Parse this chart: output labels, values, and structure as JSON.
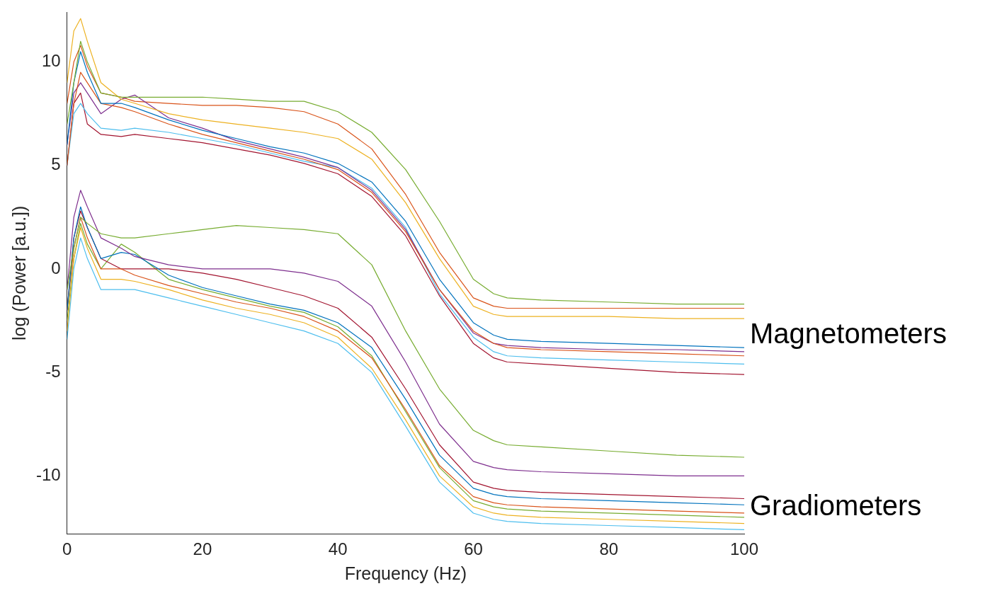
{
  "chart_data": {
    "type": "line",
    "xlabel": "Frequency (Hz)",
    "ylabel": "log (Power [a.u.])",
    "x": [
      0,
      1,
      2,
      3,
      5,
      8,
      10,
      15,
      20,
      25,
      30,
      35,
      40,
      45,
      50,
      55,
      60,
      63,
      65,
      70,
      80,
      90,
      100
    ],
    "xlim": [
      0,
      100
    ],
    "xticks": [
      0,
      20,
      40,
      60,
      80,
      100
    ],
    "ylim": [
      -12.8,
      12.4
    ],
    "yticks": [
      -10,
      -5,
      0,
      5,
      10
    ],
    "grid": false,
    "legend": false,
    "marker": "none",
    "line_style": "solid",
    "series": [
      {
        "color": "#77ac30",
        "values": [
          7,
          9,
          11,
          10,
          8.5,
          8.3,
          8.3,
          8.3,
          8.3,
          8.2,
          8.1,
          8.1,
          7.6,
          6.6,
          4.8,
          2.3,
          -0.5,
          -1.2,
          -1.4,
          -1.5,
          -1.6,
          -1.7,
          -1.7
        ]
      },
      {
        "color": "#edb120",
        "values": [
          9,
          11.5,
          12.1,
          11,
          9,
          8.2,
          8,
          7.5,
          7.2,
          7,
          6.8,
          6.6,
          6.3,
          5.3,
          3.2,
          0.5,
          -1.8,
          -2.2,
          -2.3,
          -2.3,
          -2.3,
          -2.4,
          -2.4
        ]
      },
      {
        "color": "#0072bd",
        "values": [
          6,
          9,
          10.5,
          9.5,
          8,
          8,
          7.8,
          7.2,
          6.7,
          6.3,
          5.9,
          5.6,
          5.1,
          4.2,
          2.3,
          -0.5,
          -2.6,
          -3.2,
          -3.4,
          -3.5,
          -3.6,
          -3.7,
          -3.8
        ]
      },
      {
        "color": "#d95319",
        "values": [
          5,
          8,
          9.5,
          9,
          8,
          7.8,
          7.6,
          7,
          6.5,
          6.1,
          5.7,
          5.3,
          4.8,
          3.7,
          1.8,
          -1,
          -3,
          -3.6,
          -3.8,
          -3.9,
          -4,
          -4.1,
          -4.2
        ]
      },
      {
        "color": "#7e2f8e",
        "values": [
          6,
          8.5,
          9,
          8.5,
          7.5,
          8.2,
          8.4,
          7.3,
          6.8,
          6.2,
          5.8,
          5.4,
          4.9,
          3.8,
          1.9,
          -1,
          -3.1,
          -3.6,
          -3.7,
          -3.8,
          -3.9,
          -3.9,
          -4
        ]
      },
      {
        "color": "#4dbeee",
        "values": [
          5,
          7.5,
          8,
          7.5,
          6.8,
          6.7,
          6.8,
          6.6,
          6.3,
          6,
          5.6,
          5.2,
          4.9,
          3.9,
          2,
          -1.2,
          -3.3,
          -4,
          -4.2,
          -4.3,
          -4.4,
          -4.5,
          -4.6
        ]
      },
      {
        "color": "#a2142f",
        "values": [
          5,
          8,
          8.5,
          7,
          6.5,
          6.4,
          6.5,
          6.3,
          6.1,
          5.8,
          5.5,
          5.1,
          4.6,
          3.5,
          1.6,
          -1.3,
          -3.6,
          -4.3,
          -4.5,
          -4.6,
          -4.8,
          -5,
          -5.1
        ]
      },
      {
        "color": "#d95319",
        "values": [
          8,
          10,
          10.8,
          9.8,
          8.5,
          8.3,
          8.1,
          8,
          7.9,
          7.9,
          7.8,
          7.6,
          7,
          5.8,
          3.6,
          0.8,
          -1.4,
          -1.8,
          -1.9,
          -1.9,
          -1.9,
          -1.9,
          -1.9
        ]
      },
      {
        "color": "#77ac30",
        "values": [
          -1,
          1,
          2.5,
          2.2,
          1.7,
          1.5,
          1.5,
          1.7,
          1.9,
          2.1,
          2,
          1.9,
          1.7,
          0.2,
          -3,
          -5.8,
          -7.8,
          -8.3,
          -8.5,
          -8.6,
          -8.8,
          -9,
          -9.1
        ]
      },
      {
        "color": "#7e2f8e",
        "values": [
          -1,
          2.5,
          3.8,
          3,
          1.5,
          1,
          0.6,
          0.2,
          0,
          0,
          0,
          -0.2,
          -0.6,
          -1.8,
          -4.5,
          -7.5,
          -9.3,
          -9.6,
          -9.7,
          -9.8,
          -9.9,
          -10,
          -10
        ]
      },
      {
        "color": "#0072bd",
        "values": [
          -2,
          1.5,
          3,
          2,
          0.5,
          0.8,
          0.7,
          -0.3,
          -0.9,
          -1.3,
          -1.7,
          -2,
          -2.6,
          -3.8,
          -6.3,
          -9,
          -10.6,
          -10.9,
          -11,
          -11.1,
          -11.2,
          -11.3,
          -11.4
        ]
      },
      {
        "color": "#d95319",
        "values": [
          -2,
          1,
          2.5,
          1.5,
          0,
          0,
          -0.3,
          -0.8,
          -1.2,
          -1.6,
          -1.9,
          -2.3,
          -3,
          -4.3,
          -6.8,
          -9.5,
          -11,
          -11.3,
          -11.4,
          -11.5,
          -11.6,
          -11.7,
          -11.8
        ]
      },
      {
        "color": "#edb120",
        "values": [
          -3,
          0.5,
          2,
          1,
          -0.5,
          -0.5,
          -0.6,
          -1,
          -1.5,
          -1.9,
          -2.2,
          -2.6,
          -3.3,
          -4.8,
          -7.3,
          -10,
          -11.5,
          -11.8,
          -11.9,
          -12,
          -12.1,
          -12.2,
          -12.3
        ]
      },
      {
        "color": "#4dbeee",
        "values": [
          -3.4,
          0,
          1.5,
          0.5,
          -1,
          -1,
          -1,
          -1.4,
          -1.8,
          -2.2,
          -2.6,
          -3,
          -3.6,
          -5,
          -7.6,
          -10.3,
          -11.8,
          -12.1,
          -12.2,
          -12.3,
          -12.4,
          -12.5,
          -12.6
        ]
      },
      {
        "color": "#a2142f",
        "values": [
          -2,
          1.5,
          2.8,
          2,
          0.5,
          0,
          0,
          0,
          -0.2,
          -0.5,
          -0.9,
          -1.3,
          -1.9,
          -3.3,
          -5.8,
          -8.5,
          -10.3,
          -10.6,
          -10.7,
          -10.8,
          -10.9,
          -11,
          -11.1
        ]
      },
      {
        "color": "#77ac30",
        "values": [
          -2.5,
          0.5,
          2.2,
          1.2,
          0,
          1.2,
          0.8,
          -0.5,
          -1,
          -1.4,
          -1.8,
          -2.1,
          -2.8,
          -4.2,
          -6.9,
          -9.6,
          -11.2,
          -11.5,
          -11.6,
          -11.7,
          -11.8,
          -11.9,
          -12
        ]
      }
    ],
    "annotations": [
      "Magnetometers",
      "Gradiometers"
    ]
  }
}
